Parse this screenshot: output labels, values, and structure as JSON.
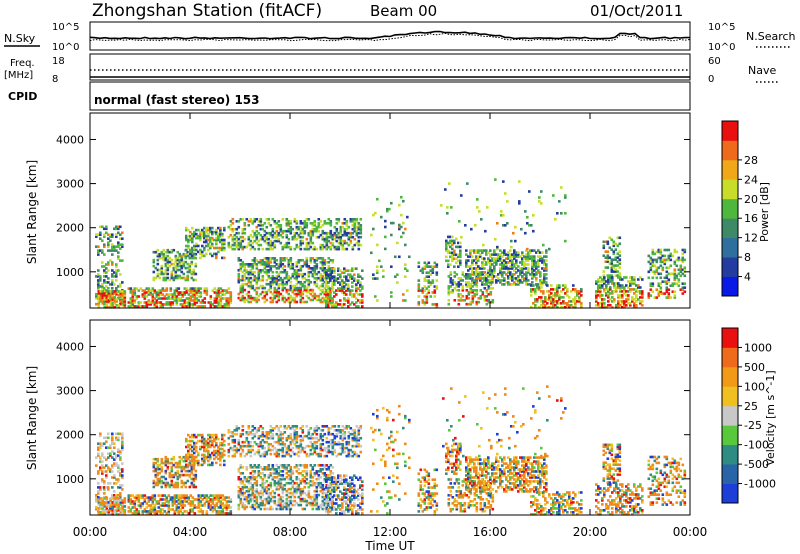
{
  "header": {
    "title": "Zhongshan Station (fitACF)",
    "beam": "Beam 00",
    "date": "01/Oct/2011"
  },
  "status_panels": {
    "nsky_label": "N.Sky",
    "nsky_ticks": [
      "10^5",
      "10^0"
    ],
    "nsearch_label": "N.Search",
    "nsearch_ticks": [
      "10^5",
      "10^0"
    ],
    "freq_label_line1": "Freq.",
    "freq_label_line2": "[MHz]",
    "freq_ticks": [
      "18",
      "8"
    ],
    "nave_label": "Nave",
    "nave_ticks": [
      "60",
      "0"
    ],
    "cpid_label": "CPID",
    "cpid_value": "normal (fast stereo) 153"
  },
  "chart_data": [
    {
      "type": "heatmap",
      "parameter": "Power",
      "ylabel": "Slant Range [km]",
      "ylim": [
        180,
        4600
      ],
      "y_ticks": [
        1000,
        2000,
        3000,
        4000
      ],
      "colorbar_label": "Power [dB]",
      "colorbar_ticks": [
        "4",
        "8",
        "12",
        "16",
        "20",
        "24",
        "28"
      ],
      "colorbar_colors": [
        "#0a1ae6",
        "#243ca0",
        "#2e6f9e",
        "#3e8a66",
        "#4db83c",
        "#c8dc2a",
        "#f0a818",
        "#ef6a1a",
        "#ea1010"
      ],
      "colors": {
        "low": "#243ca0",
        "mid": "#3e8a66",
        "green": "#4db83c",
        "yellow": "#c8dc2a",
        "orange": "#ef7a1a",
        "red": "#ea1010"
      }
    },
    {
      "type": "heatmap",
      "parameter": "Velocity",
      "ylabel": "Slant Range [km]",
      "ylim": [
        180,
        4600
      ],
      "y_ticks": [
        1000,
        2000,
        3000,
        4000
      ],
      "colorbar_label": "Velocity [m s^-1]",
      "colorbar_ticks": [
        "1000",
        "500",
        "100",
        "25",
        "-25",
        "-100",
        "-500",
        "-1000"
      ],
      "colorbar_colors": [
        "#1e3ed8",
        "#2a64a8",
        "#2e8c82",
        "#5ac83c",
        "#c8c8c8",
        "#f0c020",
        "#f09a18",
        "#ef6a1a",
        "#ea1010"
      ],
      "colors": {
        "pos_high": "#1e3ed8",
        "pos_mid": "#2e8c82",
        "pos_low": "#5ac83c",
        "ground": "#c8c8c8",
        "neg_low": "#f0c020",
        "neg_mid": "#ef8a1a",
        "neg_high": "#ea1010"
      }
    }
  ],
  "x_axis": {
    "label": "Time UT",
    "ticks": [
      "00:00",
      "04:00",
      "08:00",
      "12:00",
      "16:00",
      "20:00",
      "00:00"
    ],
    "range_hours": [
      0,
      24
    ]
  },
  "echo_regions": [
    {
      "t0": 0.2,
      "t1": 1.3,
      "r0": 250,
      "r1": 2050,
      "d": 0.35
    },
    {
      "t0": 0.3,
      "t1": 1.4,
      "r0": 180,
      "r1": 550,
      "d": 0.8
    },
    {
      "t0": 1.5,
      "t1": 5.6,
      "r0": 200,
      "r1": 650,
      "d": 0.6
    },
    {
      "t0": 2.5,
      "t1": 4.2,
      "r0": 800,
      "r1": 1500,
      "d": 0.45
    },
    {
      "t0": 3.8,
      "t1": 5.4,
      "r0": 1300,
      "r1": 2000,
      "d": 0.5
    },
    {
      "t0": 5.5,
      "t1": 10.8,
      "r0": 1500,
      "r1": 2200,
      "d": 0.45
    },
    {
      "t0": 5.9,
      "t1": 9.7,
      "r0": 300,
      "r1": 1300,
      "d": 0.5
    },
    {
      "t0": 9.4,
      "t1": 10.9,
      "r0": 200,
      "r1": 1100,
      "d": 0.5
    },
    {
      "t0": 11.2,
      "t1": 12.8,
      "r0": 200,
      "r1": 2700,
      "d": 0.06
    },
    {
      "t0": 13.1,
      "t1": 13.9,
      "r0": 200,
      "r1": 1200,
      "d": 0.35
    },
    {
      "t0": 14.2,
      "t1": 14.8,
      "r0": 1100,
      "r1": 1800,
      "d": 0.45
    },
    {
      "t0": 14.3,
      "t1": 16.1,
      "r0": 250,
      "r1": 1000,
      "d": 0.35
    },
    {
      "t0": 15.0,
      "t1": 18.2,
      "r0": 700,
      "r1": 1500,
      "d": 0.55
    },
    {
      "t0": 17.6,
      "t1": 19.6,
      "r0": 180,
      "r1": 700,
      "d": 0.45
    },
    {
      "t0": 14.0,
      "t1": 19.0,
      "r0": 1500,
      "r1": 3100,
      "d": 0.03
    },
    {
      "t0": 20.5,
      "t1": 21.2,
      "r0": 900,
      "r1": 1800,
      "d": 0.45
    },
    {
      "t0": 20.2,
      "t1": 22.1,
      "r0": 180,
      "r1": 900,
      "d": 0.45
    },
    {
      "t0": 22.3,
      "t1": 23.8,
      "r0": 400,
      "r1": 1500,
      "d": 0.3
    }
  ]
}
